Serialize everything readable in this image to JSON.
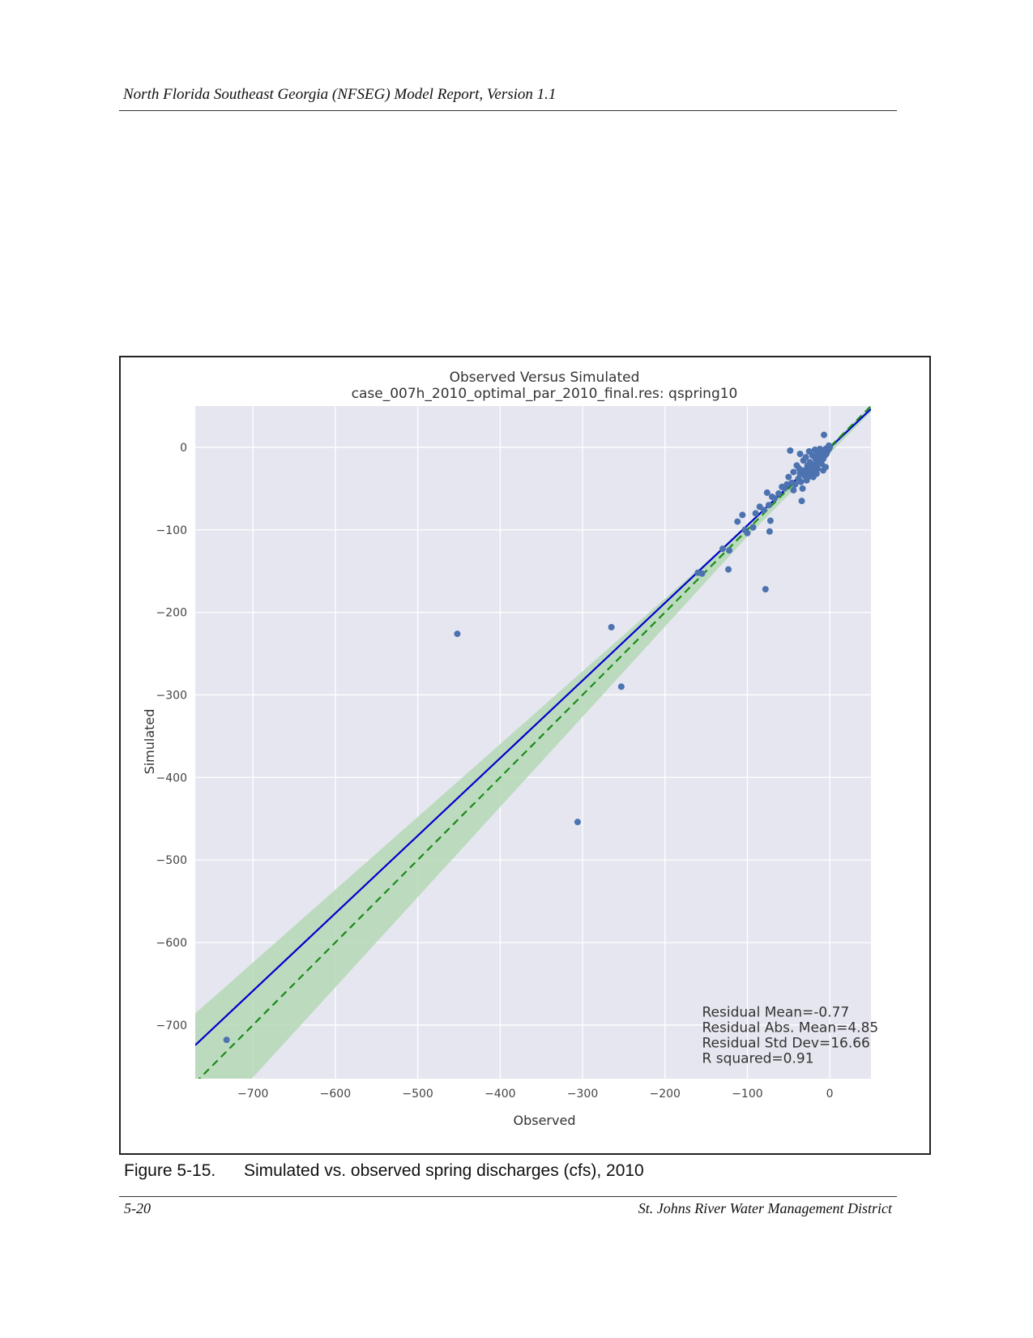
{
  "page": {
    "header": "North Florida Southeast Georgia (NFSEG) Model Report, Version 1.1",
    "figure_number": "Figure 5-15.",
    "figure_caption": "Simulated vs. observed spring discharges (cfs), 2010",
    "footer_left": "5-20",
    "footer_right": "St. Johns River Water Management District"
  },
  "chart_data": {
    "type": "scatter",
    "title": "Observed Versus Simulated",
    "subtitle": "case_007h_2010_optimal_par_2010_final.res: qspring10",
    "xlabel": "Observed",
    "ylabel": "Simulated",
    "xlim": [
      -770,
      50
    ],
    "ylim": [
      -765,
      50
    ],
    "xticks": [
      -700,
      -600,
      -500,
      -400,
      -300,
      -200,
      -100,
      0
    ],
    "yticks": [
      0,
      -100,
      -200,
      -300,
      -400,
      -500,
      -600,
      -700
    ],
    "grid": true,
    "colors": {
      "background": "#e5e6ef",
      "grid": "#ffffff",
      "points": "#4c72b0",
      "regression_line": "#0000cc",
      "one_to_one_line": "#1a8a1a",
      "confidence_band": "#b5d8b5"
    },
    "regression_line": {
      "intercept": -0.6,
      "slope": 0.94
    },
    "one_to_one_line": {
      "slope": 1,
      "intercept": 0,
      "style": "dashed"
    },
    "confidence_band": {
      "upper": [
        [
          -770,
          -686
        ],
        [
          -100,
          -95
        ],
        [
          50,
          51
        ]
      ],
      "lower": [
        [
          -770,
          -840
        ],
        [
          -100,
          -108
        ],
        [
          50,
          43
        ]
      ]
    },
    "stats": [
      "Residual Mean=-0.77",
      "Residual Abs. Mean=4.85",
      "Residual Std Dev=16.66",
      "R squared=0.91"
    ],
    "points": [
      [
        -732,
        -718
      ],
      [
        -452,
        -226
      ],
      [
        -265,
        -218
      ],
      [
        -253,
        -290
      ],
      [
        -306,
        -454
      ],
      [
        -78,
        -172
      ],
      [
        -123,
        -148
      ],
      [
        -155,
        -153
      ],
      [
        -160,
        -152
      ],
      [
        -130,
        -123
      ],
      [
        -122,
        -125
      ],
      [
        -112,
        -90
      ],
      [
        -106,
        -82
      ],
      [
        -103,
        -100
      ],
      [
        -100,
        -104
      ],
      [
        -93,
        -97
      ],
      [
        -90,
        -80
      ],
      [
        -85,
        -72
      ],
      [
        -80,
        -76
      ],
      [
        -76,
        -55
      ],
      [
        -74,
        -70
      ],
      [
        -73,
        -102
      ],
      [
        -72,
        -89
      ],
      [
        -70,
        -60
      ],
      [
        -67,
        -62
      ],
      [
        -62,
        -56
      ],
      [
        -58,
        -48
      ],
      [
        -55,
        -50
      ],
      [
        -52,
        -45
      ],
      [
        -50,
        -36
      ],
      [
        -48,
        -4
      ],
      [
        -46,
        -43
      ],
      [
        -44,
        -52
      ],
      [
        -42,
        -45
      ],
      [
        -40,
        -22
      ],
      [
        -38,
        -38
      ],
      [
        -37,
        -26
      ],
      [
        -36,
        -32
      ],
      [
        -35,
        -42
      ],
      [
        -34,
        -65
      ],
      [
        -33,
        -50
      ],
      [
        -32,
        -16
      ],
      [
        -31,
        -28
      ],
      [
        -30,
        -35
      ],
      [
        -29,
        -12
      ],
      [
        -28,
        -40
      ],
      [
        -27,
        -22
      ],
      [
        -26,
        -30
      ],
      [
        -25,
        -5
      ],
      [
        -24,
        -18
      ],
      [
        -23,
        -26
      ],
      [
        -22,
        -34
      ],
      [
        -21,
        -10
      ],
      [
        -20,
        -22
      ],
      [
        -19,
        -28
      ],
      [
        -18,
        -3
      ],
      [
        -17,
        -14
      ],
      [
        -16,
        -20
      ],
      [
        -15,
        -26
      ],
      [
        -14,
        -8
      ],
      [
        -13,
        -16
      ],
      [
        -12,
        -2
      ],
      [
        -11,
        -12
      ],
      [
        -10,
        -20
      ],
      [
        -9,
        -6
      ],
      [
        -8,
        -14
      ],
      [
        -8,
        -28
      ],
      [
        -7,
        15
      ],
      [
        -7,
        -4
      ],
      [
        -6,
        -10
      ],
      [
        -5,
        -2
      ],
      [
        -5,
        -24
      ],
      [
        -4,
        -8
      ],
      [
        -3,
        -1
      ],
      [
        -3,
        -5
      ],
      [
        -2,
        0
      ],
      [
        -2,
        -3
      ],
      [
        -1,
        2
      ],
      [
        -1,
        -2
      ],
      [
        0,
        0
      ],
      [
        -36,
        -8
      ],
      [
        -26,
        -36
      ],
      [
        -20,
        -36
      ],
      [
        -16,
        -32
      ],
      [
        -44,
        -30
      ]
    ]
  }
}
